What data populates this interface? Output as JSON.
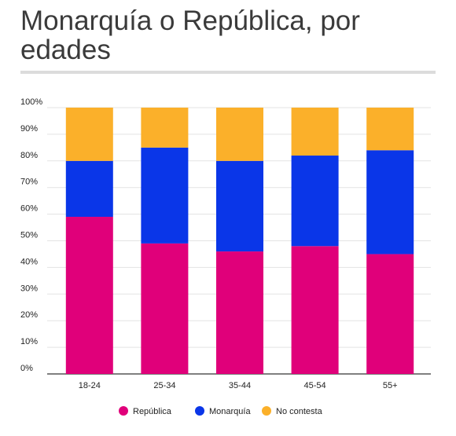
{
  "title": "Monarquía o República, por edades",
  "chart_data": {
    "type": "bar",
    "stacked": true,
    "categories": [
      "18-24",
      "25-34",
      "35-44",
      "45-54",
      "55+"
    ],
    "series": [
      {
        "name": "República",
        "color": "#e0007a",
        "values": [
          59,
          49,
          46,
          48,
          45
        ]
      },
      {
        "name": "Monarquía",
        "color": "#0a36e8",
        "values": [
          21,
          36,
          34,
          34,
          39
        ]
      },
      {
        "name": "No contesta",
        "color": "#fbb02a",
        "values": [
          20,
          15,
          20,
          18,
          16
        ]
      }
    ],
    "ylim": [
      0,
      100
    ],
    "yticks": [
      "0%",
      "10%",
      "20%",
      "30%",
      "40%",
      "50%",
      "60%",
      "70%",
      "80%",
      "90%",
      "100%"
    ],
    "grid": true,
    "legend_position": "bottom"
  }
}
